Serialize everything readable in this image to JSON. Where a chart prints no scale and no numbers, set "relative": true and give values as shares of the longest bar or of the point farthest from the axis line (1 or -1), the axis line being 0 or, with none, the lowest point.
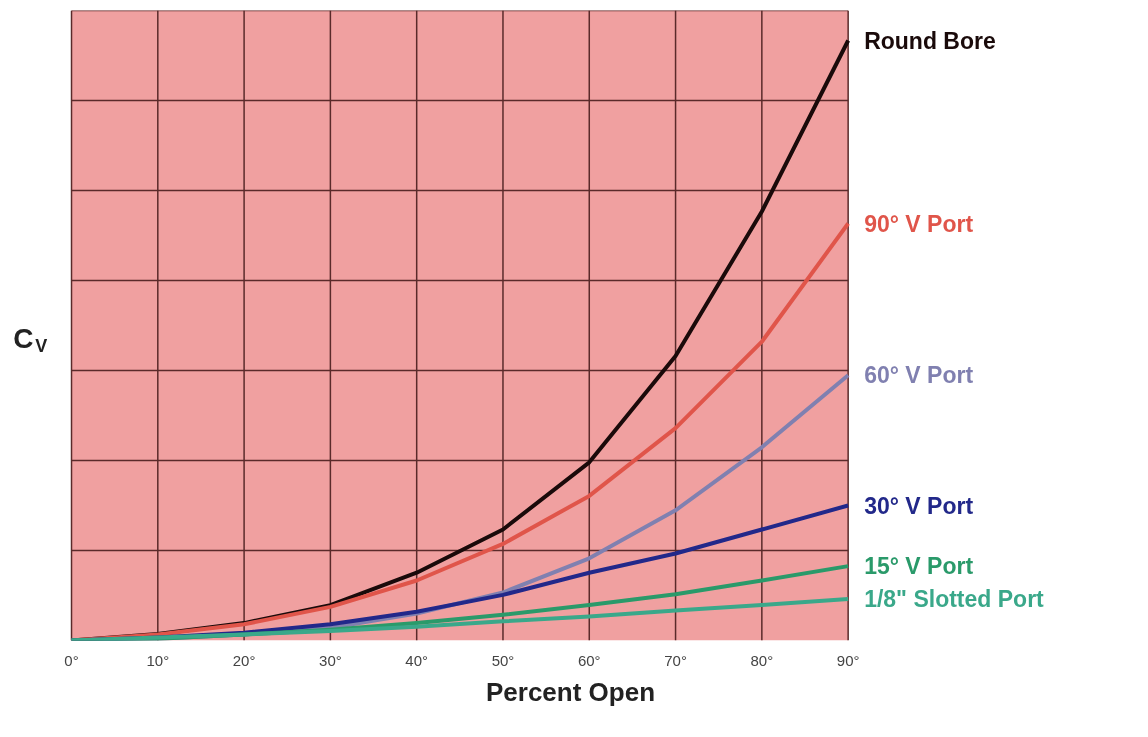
{
  "chart_data": {
    "type": "line",
    "relative": true,
    "xlabel": "Percent Open",
    "ylabel": "C$_{V}$",
    "x": [
      0,
      10,
      20,
      30,
      40,
      50,
      60,
      70,
      80,
      90
    ],
    "xlim": [
      0,
      90
    ],
    "xticks": [
      {
        "value": 0,
        "label": "0°"
      },
      {
        "value": 10,
        "label": "10°"
      },
      {
        "value": 20,
        "label": "20°"
      },
      {
        "value": 30,
        "label": "30°"
      },
      {
        "value": 40,
        "label": "40°"
      },
      {
        "value": 50,
        "label": "50°"
      },
      {
        "value": 60,
        "label": "60°"
      },
      {
        "value": 70,
        "label": "70°"
      },
      {
        "value": 80,
        "label": "80°"
      },
      {
        "value": 90,
        "label": "90°"
      }
    ],
    "grid": true,
    "legend": false,
    "marker": "none",
    "line_style": "solid",
    "series": [
      {
        "name": "Round Bore",
        "color": "#1a0a0a",
        "values": [
          0,
          0.011,
          0.029,
          0.059,
          0.113,
          0.185,
          0.297,
          0.474,
          0.715,
          1
        ]
      },
      {
        "name": "90° V Port",
        "color": "#e0554a",
        "values": [
          0,
          0.01,
          0.027,
          0.056,
          0.1,
          0.161,
          0.241,
          0.354,
          0.498,
          0.695
        ]
      },
      {
        "name": "60° V Port",
        "color": "#8080b0",
        "values": [
          0,
          0.003,
          0.01,
          0.021,
          0.045,
          0.08,
          0.137,
          0.217,
          0.322,
          0.442
        ]
      },
      {
        "name": "30° V Port",
        "color": "#22288a",
        "values": [
          0,
          0.005,
          0.013,
          0.027,
          0.048,
          0.076,
          0.113,
          0.145,
          0.185,
          0.225
        ]
      },
      {
        "name": "15° V Port",
        "color": "#2a9a6a",
        "values": [
          0,
          0.003,
          0.01,
          0.018,
          0.029,
          0.043,
          0.059,
          0.077,
          0.1,
          0.124
        ]
      },
      {
        "name": "1/8\" Slotted Port",
        "color": "#3aa88a",
        "values": [
          0,
          0.005,
          0.01,
          0.016,
          0.023,
          0.032,
          0.04,
          0.05,
          0.059,
          0.069
        ]
      }
    ]
  }
}
